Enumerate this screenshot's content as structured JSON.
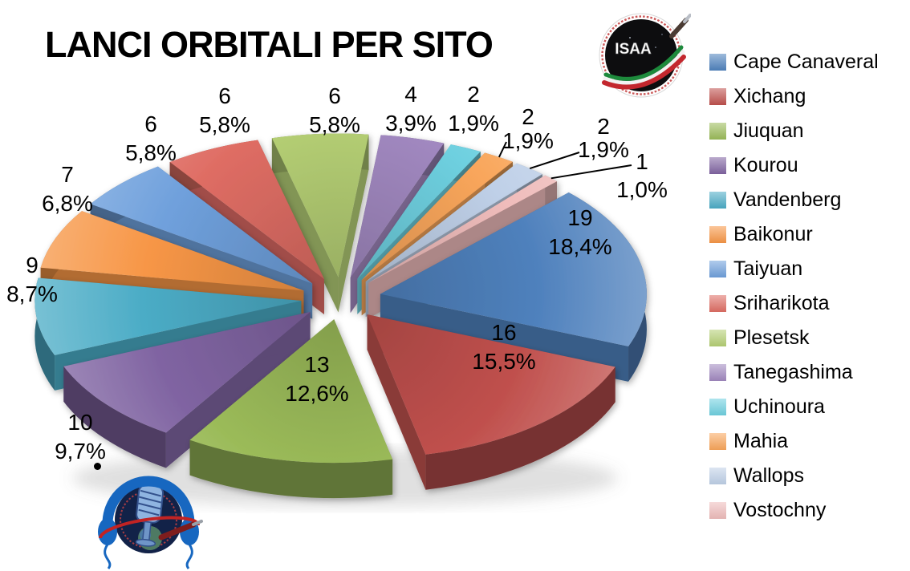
{
  "title": "LANCI ORBITALI PER SITO",
  "isaa_logo_text": "ISAA",
  "chart_data": {
    "type": "pie",
    "style": "3d-exploded",
    "title": "LANCI ORBITALI PER SITO",
    "legend_position": "right",
    "start_angle_deg": 45,
    "categories": [
      "Cape Canaveral",
      "Xichang",
      "Jiuquan",
      "Kourou",
      "Vandenberg",
      "Baikonur",
      "Taiyuan",
      "Sriharikota",
      "Plesetsk",
      "Tanegashima",
      "Uchinoura",
      "Mahia",
      "Wallops",
      "Vostochny"
    ],
    "values": [
      19,
      16,
      13,
      10,
      9,
      7,
      6,
      6,
      6,
      4,
      2,
      2,
      2,
      1
    ],
    "percent_labels": [
      "18,4%",
      "15,5%",
      "12,6%",
      "9,7%",
      "8,7%",
      "6,8%",
      "5,8%",
      "5,8%",
      "5,8%",
      "3,9%",
      "1,9%",
      "1,9%",
      "1,9%",
      "1,0%"
    ],
    "colors": [
      "#4F81BD",
      "#C0504D",
      "#9BBB59",
      "#8064A2",
      "#4BACC6",
      "#F79646",
      "#6FA0DC",
      "#DF6D64",
      "#B5CF74",
      "#A188C0",
      "#6ED0E0",
      "#F9A65B",
      "#BFD0E8",
      "#EFBCBB"
    ]
  }
}
